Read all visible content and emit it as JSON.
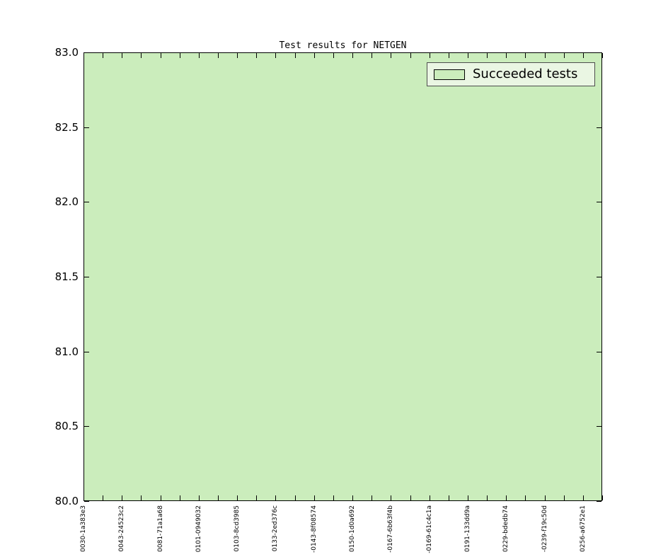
{
  "title": "Test results for NETGEN",
  "legend": {
    "label": "Succeeded tests"
  },
  "colors": {
    "background": "#ffffff",
    "fill": "#cbedbc",
    "plot_border": "#000000",
    "legend_background": "#eaf6e3",
    "legend_border": "#4d4d4d",
    "tick": "#000000"
  },
  "chart_data": {
    "type": "area",
    "title": "Test results for NETGEN",
    "xlabel": "",
    "ylabel": "",
    "categories": [
      "0030-1a383e3",
      "0043-24523c2",
      "0081-71a1a68",
      "0101-0949032",
      "0103-8cd3985",
      "0133-2ed376c",
      "-0143-8f08574",
      "0150-1d0a692",
      "-0167-6b63f4b",
      "-0169-61c4c1a",
      "0191-133dd9a",
      "0229-bdedb74",
      "-0239-f19c50d",
      "0256-a6752e1"
    ],
    "series": [
      {
        "name": "Succeeded tests",
        "values": [
          83,
          83,
          83,
          83,
          83,
          83,
          83,
          83,
          83,
          83,
          83,
          83,
          83,
          83
        ],
        "values_clipped_at_ylim_top": true,
        "fill_color": "#cbedbc"
      }
    ],
    "ylim": [
      80.0,
      83.0
    ],
    "y_ticks": [
      80.0,
      80.5,
      81.0,
      81.5,
      82.0,
      82.5,
      83.0
    ],
    "y_tick_format_decimals": 1,
    "x_tick_count": 28,
    "labeled_every_nth_tick": 2,
    "x_label_rotation_deg": 90,
    "grid": false,
    "legend_position": "upper right",
    "tick_direction": "in",
    "ticks_on_all_spines": true
  }
}
